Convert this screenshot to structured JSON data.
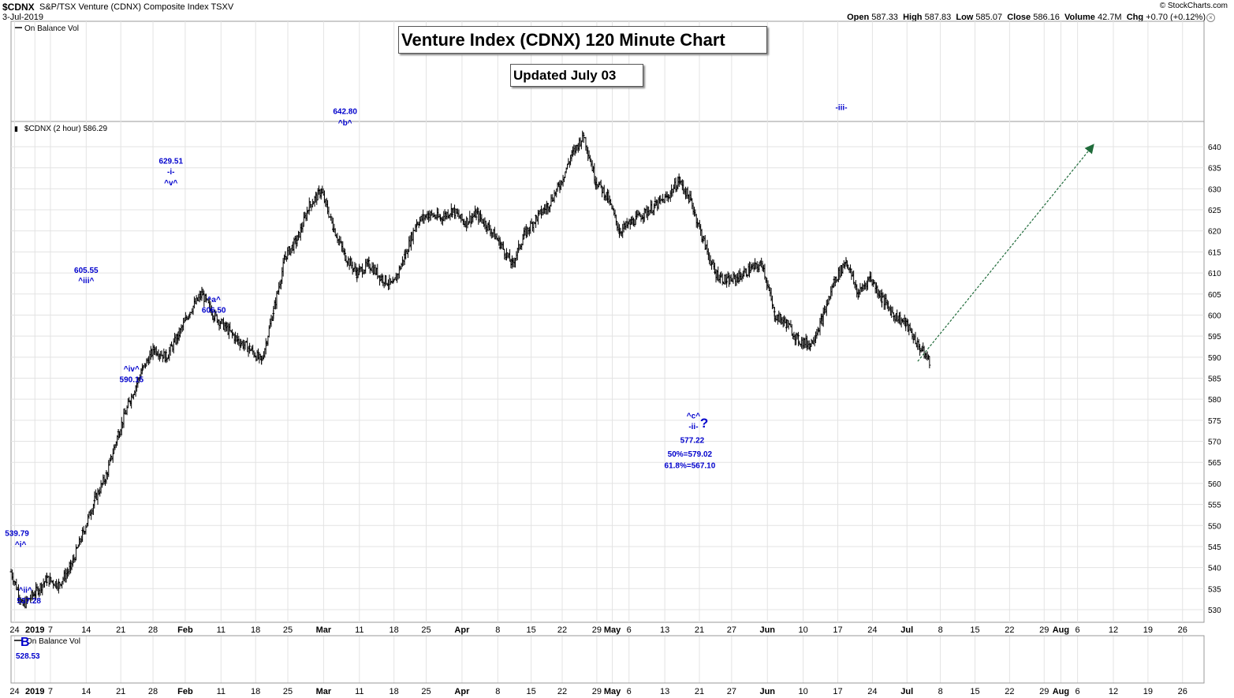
{
  "header": {
    "symbol": "$CDNX",
    "name": "S&P/TSX Venture (CDNX) Composite Index  TSXV",
    "date": "3-Jul-2019",
    "credit": "© StockCharts.com",
    "open_label": "Open",
    "open": "587.33",
    "high_label": "High",
    "high": "587.83",
    "low_label": "Low",
    "low": "585.07",
    "close_label": "Close",
    "close": "586.16",
    "volume_label": "Volume",
    "volume": "42.7M",
    "chg_label": "Chg",
    "chg": "+0.70 (+0.12%)"
  },
  "top_panel_label": "On Balance Vol",
  "price_panel_label": "$CDNX (2 hour) 586.29",
  "bottom_panel_label": "On Balance Vol",
  "title_box": "Venture Index (CDNX) 120 Minute Chart",
  "updated_box": "Updated July 03",
  "annotations": [
    {
      "text": "539.79",
      "x": 0.5,
      "y": 547.5
    },
    {
      "text": "^i^",
      "x": 0.8,
      "y": 544.9
    },
    {
      "text": "^ii^",
      "x": 1.2,
      "y": 534.0
    },
    {
      "text": "537.28",
      "x": 1.5,
      "y": 531.5
    },
    {
      "text": "605.55",
      "x": 6.3,
      "y": 610.0
    },
    {
      "text": "^iii^",
      "x": 6.3,
      "y": 607.6
    },
    {
      "text": "^iv^",
      "x": 10.1,
      "y": 586.6
    },
    {
      "text": "590.15",
      "x": 10.1,
      "y": 584.1
    },
    {
      "text": "629.51",
      "x": 13.4,
      "y": 636.0
    },
    {
      "text": "-i-",
      "x": 13.4,
      "y": 633.4
    },
    {
      "text": "^v^",
      "x": 13.4,
      "y": 630.8
    },
    {
      "text": "^a^",
      "x": 17.0,
      "y": 603.1
    },
    {
      "text": "606.50",
      "x": 17.0,
      "y": 600.6
    },
    {
      "text": "642.80",
      "x": 28.0,
      "y": 647.8
    },
    {
      "text": "^b^",
      "x": 28.0,
      "y": 645.1
    },
    {
      "text": "^c^",
      "x": 57.2,
      "y": 575.4
    },
    {
      "text": "-ii-",
      "x": 57.2,
      "y": 572.9
    },
    {
      "text": "?",
      "x": 58.1,
      "y": 573.3
    },
    {
      "text": "577.22",
      "x": 57.1,
      "y": 569.6
    },
    {
      "text": "50%=579.02",
      "x": 56.9,
      "y": 566.4
    },
    {
      "text": "61.8%=567.10",
      "x": 56.9,
      "y": 563.6
    },
    {
      "text": "-iii-",
      "x": 69.6,
      "y": 648.7
    }
  ],
  "bottom_annotations": [
    {
      "text": "B"
    },
    {
      "text": "528.53"
    }
  ],
  "colors": {
    "annotation": "#0000cc",
    "arrow": "#1f6b3a",
    "bars": "#000000",
    "grid": "#e3e3e3"
  },
  "chart_data": {
    "type": "bar",
    "subtype": "ohlc",
    "interval": "2 hour",
    "ylim": [
      527,
      646
    ],
    "y_ticks": [
      530,
      535,
      540,
      545,
      550,
      555,
      560,
      565,
      570,
      575,
      580,
      585,
      590,
      595,
      600,
      605,
      610,
      615,
      620,
      625,
      630,
      635,
      640
    ],
    "x_ticks": [
      {
        "label": "24",
        "x": 0.3
      },
      {
        "label": "2019",
        "x": 2.0
      },
      {
        "label": "7",
        "x": 3.3
      },
      {
        "label": "14",
        "x": 6.3
      },
      {
        "label": "21",
        "x": 9.2
      },
      {
        "label": "28",
        "x": 11.9
      },
      {
        "label": "Feb",
        "x": 14.6
      },
      {
        "label": "11",
        "x": 17.6
      },
      {
        "label": "18",
        "x": 20.5
      },
      {
        "label": "25",
        "x": 23.2
      },
      {
        "label": "Mar",
        "x": 26.2
      },
      {
        "label": "11",
        "x": 29.2
      },
      {
        "label": "18",
        "x": 32.1
      },
      {
        "label": "25",
        "x": 34.8
      },
      {
        "label": "Apr",
        "x": 37.8
      },
      {
        "label": "8",
        "x": 40.8
      },
      {
        "label": "15",
        "x": 43.6
      },
      {
        "label": "22",
        "x": 46.2
      },
      {
        "label": "29",
        "x": 49.1
      },
      {
        "label": "May",
        "x": 50.4
      },
      {
        "label": "6",
        "x": 51.8
      },
      {
        "label": "13",
        "x": 54.8
      },
      {
        "label": "21",
        "x": 57.7
      },
      {
        "label": "27",
        "x": 60.4
      },
      {
        "label": "Jun",
        "x": 63.4
      },
      {
        "label": "10",
        "x": 66.4
      },
      {
        "label": "17",
        "x": 69.3
      },
      {
        "label": "24",
        "x": 72.2
      },
      {
        "label": "Jul",
        "x": 75.1
      },
      {
        "label": "8",
        "x": 77.9
      },
      {
        "label": "15",
        "x": 80.8
      },
      {
        "label": "22",
        "x": 83.7
      },
      {
        "label": "29",
        "x": 86.6
      },
      {
        "label": "Aug",
        "x": 88.0
      },
      {
        "label": "6",
        "x": 89.4
      },
      {
        "label": "12",
        "x": 92.4
      },
      {
        "label": "19",
        "x": 95.3
      },
      {
        "label": "26",
        "x": 98.2
      }
    ],
    "x_range": [
      0,
      100
    ],
    "projection": {
      "from": [
        76.0,
        589.0
      ],
      "to": [
        90.6,
        640.0
      ]
    },
    "series": [
      {
        "x": [
          0,
          1,
          2,
          3,
          4,
          5,
          6,
          7,
          8,
          9,
          10,
          11,
          12,
          13,
          14,
          15,
          16,
          17,
          18,
          19,
          20,
          21,
          22,
          23,
          24,
          25,
          26,
          27,
          28,
          29,
          30,
          31,
          32,
          33,
          34,
          35,
          36,
          37,
          38,
          39,
          40,
          41,
          42,
          43,
          44,
          45,
          46,
          47,
          48,
          49,
          50,
          51,
          52,
          53,
          54,
          55,
          56,
          57,
          58,
          59,
          60,
          61,
          62,
          63,
          64,
          65,
          66,
          67,
          68,
          69,
          70,
          71,
          72,
          73,
          74,
          75,
          76,
          77
        ],
        "values": [
          539.0,
          531.0,
          534.0,
          537.3,
          536.0,
          540.0,
          548.0,
          556.0,
          562.0,
          572.0,
          580.0,
          587.0,
          592.0,
          590.0,
          595.0,
          601.0,
          605.0,
          600.0,
          597.0,
          594.0,
          592.0,
          589.0,
          601.0,
          614.0,
          618.0,
          626.0,
          629.5,
          621.0,
          614.0,
          610.0,
          612.0,
          609.0,
          607.0,
          614.0,
          622.0,
          624.0,
          623.0,
          625.0,
          622.0,
          624.0,
          621.0,
          617.0,
          612.0,
          619.0,
          623.0,
          626.0,
          631.0,
          638.0,
          642.8,
          632.0,
          628.0,
          620.0,
          622.0,
          624.0,
          626.0,
          628.0,
          632.0,
          627.0,
          618.0,
          610.0,
          608.0,
          609.0,
          611.0,
          612.0,
          600.0,
          598.0,
          594.0,
          593.0,
          599.0,
          608.0,
          613.0,
          605.0,
          609.0,
          604.0,
          600.0,
          598.0,
          593.0,
          589.0
        ]
      }
    ]
  }
}
